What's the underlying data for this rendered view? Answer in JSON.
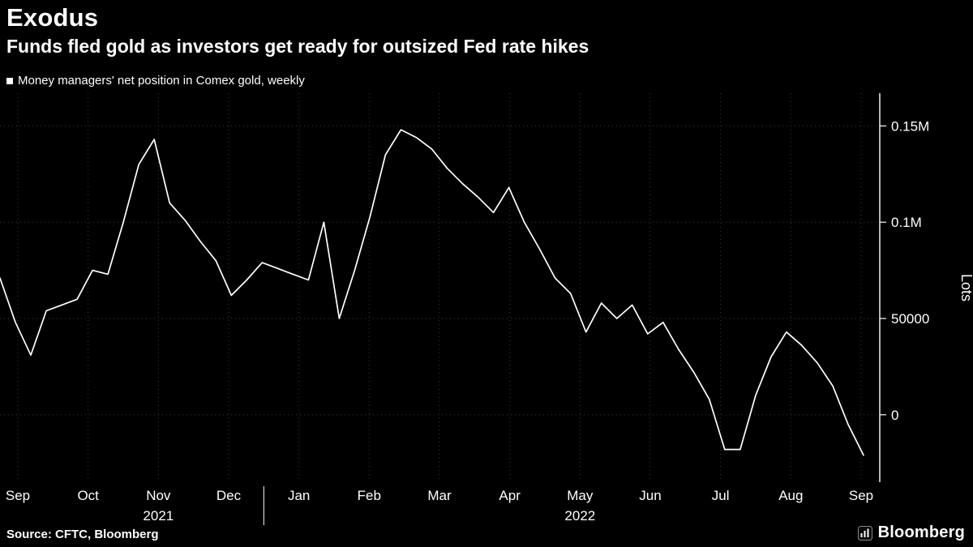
{
  "header": {
    "title": "Exodus",
    "subtitle": "Funds fled gold as investors get ready for outsized Fed rate hikes"
  },
  "legend": {
    "label": "Money managers' net position in Comex gold, weekly"
  },
  "chart_data": {
    "type": "line",
    "title": "Money managers' net position in Comex gold, weekly",
    "xlabel": "",
    "ylabel": "Lots",
    "x_tick_labels": [
      "Sep",
      "Oct",
      "Nov",
      "Dec",
      "Jan",
      "Feb",
      "Mar",
      "Apr",
      "May",
      "Jun",
      "Jul",
      "Aug",
      "Sep"
    ],
    "year_labels": [
      "2021",
      "2022"
    ],
    "y_tick_labels": [
      "0.15M",
      "0.1M",
      "50000",
      "0"
    ],
    "y_tick_values": [
      150000,
      100000,
      50000,
      0
    ],
    "ylim": [
      -35000,
      167000
    ],
    "grid": "dotted",
    "legend_position": "top-left",
    "frequency": "weekly",
    "values": [
      71000,
      48000,
      31000,
      54000,
      57000,
      60000,
      75000,
      73000,
      100000,
      130000,
      143000,
      110000,
      101000,
      90000,
      80000,
      62000,
      70000,
      79000,
      76000,
      73000,
      70000,
      100000,
      50000,
      75000,
      103000,
      135000,
      148000,
      144000,
      138000,
      128000,
      120000,
      113000,
      105000,
      118000,
      100000,
      86000,
      71000,
      63000,
      43000,
      58000,
      50000,
      57000,
      42000,
      48000,
      34000,
      22000,
      8000,
      -18000,
      -18000,
      10000,
      30000,
      43000,
      36000,
      27000,
      15000,
      -5000,
      -21000
    ]
  },
  "footer": {
    "source": "Source: CFTC, Bloomberg",
    "brand": "Bloomberg"
  },
  "colors": {
    "background": "#000000",
    "line": "#ffffff",
    "grid": "#3d3d3d",
    "text": "#ffffff",
    "axis": "#ffffff"
  }
}
